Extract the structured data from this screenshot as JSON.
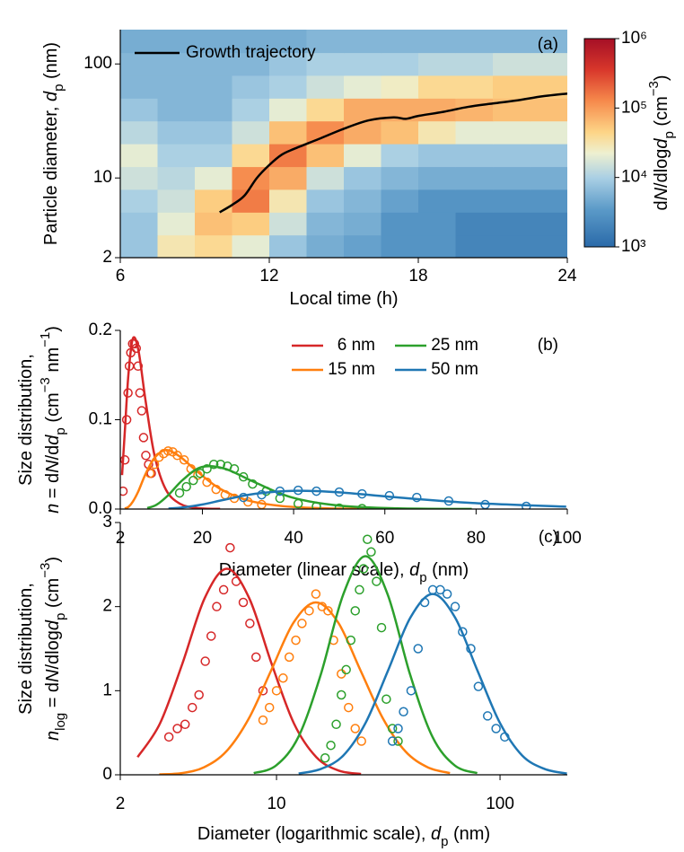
{
  "chart_data": [
    {
      "type": "heatmap",
      "label": "(a)",
      "xlim": [
        6,
        24
      ],
      "xticks": [
        6,
        12,
        18,
        24
      ],
      "ylim": [
        2,
        200
      ],
      "yticks": [
        2,
        10,
        100
      ],
      "ylog": true,
      "xlabel": [
        "Local time (h)"
      ],
      "ylabel": [
        [
          "Particle diameter, ",
          "d",
          "p",
          " (nm)"
        ]
      ],
      "xbins": [
        6,
        7.5,
        9,
        10.5,
        12,
        13.5,
        15,
        16.5,
        18,
        19.5,
        21,
        22.5,
        24
      ],
      "ybins": [
        2,
        3.17,
        5.02,
        7.96,
        12.6,
        20,
        31.7,
        50.2,
        79.6,
        126,
        200
      ],
      "z": [
        [
          8000,
          30000,
          40000,
          20000,
          8000,
          5000,
          4000,
          3000,
          3000,
          2000,
          2000,
          2000
        ],
        [
          8000,
          20000,
          60000,
          50000,
          15000,
          6000,
          5000,
          3000,
          3000,
          2000,
          2000,
          2000
        ],
        [
          10000,
          15000,
          50000,
          150000,
          30000,
          8000,
          6000,
          4000,
          3000,
          3000,
          3000,
          3000
        ],
        [
          15000,
          12000,
          20000,
          120000,
          80000,
          15000,
          8000,
          6000,
          5000,
          5000,
          5000,
          5000
        ],
        [
          20000,
          10000,
          10000,
          40000,
          150000,
          60000,
          20000,
          10000,
          8000,
          8000,
          8000,
          8000
        ],
        [
          12000,
          8000,
          8000,
          15000,
          60000,
          120000,
          80000,
          60000,
          30000,
          20000,
          20000,
          20000
        ],
        [
          8000,
          6000,
          6000,
          10000,
          20000,
          40000,
          80000,
          80000,
          80000,
          70000,
          60000,
          60000
        ],
        [
          6000,
          6000,
          6000,
          8000,
          10000,
          15000,
          20000,
          25000,
          40000,
          40000,
          50000,
          50000
        ],
        [
          6000,
          6000,
          6000,
          6000,
          8000,
          10000,
          10000,
          10000,
          12000,
          12000,
          15000,
          15000
        ],
        [
          5000,
          5000,
          5000,
          5000,
          5000,
          6000,
          6000,
          6000,
          6000,
          6000,
          6000,
          6000
        ]
      ],
      "clim": [
        1000,
        1000000
      ],
      "clog": true,
      "cticks": [
        {
          "value": 1000,
          "label": "10³"
        },
        {
          "value": 10000,
          "label": "10⁴"
        },
        {
          "value": 100000,
          "label": "10⁵"
        },
        {
          "value": 1000000,
          "label": "10⁶"
        }
      ],
      "clabel": [
        "d",
        "N",
        "/dlog",
        "d",
        "p",
        " (cm",
        "−3",
        ")"
      ],
      "legend": "upper left",
      "series": [
        {
          "name": "Growth trajectory",
          "color": "#000000",
          "x": [
            10,
            10.5,
            11,
            11.5,
            12,
            12.5,
            13,
            14,
            15,
            16,
            17,
            17.5,
            18,
            19,
            20,
            21,
            22,
            23,
            24
          ],
          "values": [
            5,
            5.8,
            7,
            10,
            13,
            16,
            18,
            22,
            27,
            32,
            34,
            33,
            35,
            38,
            42,
            45,
            48,
            52,
            55
          ]
        }
      ]
    },
    {
      "type": "line",
      "label": "(b)",
      "xlim": [
        2,
        100
      ],
      "xticks": [
        2,
        20,
        40,
        60,
        80,
        100
      ],
      "ylim": [
        0,
        0.2
      ],
      "yticks": [
        {
          "value": 0,
          "label": "0.0"
        },
        0.1,
        0.2
      ],
      "xlabel": [
        "Diameter (linear scale), ",
        "d",
        "p",
        " (nm)"
      ],
      "ylabel": [
        [
          "Size distribution,"
        ],
        [
          "n",
          " = d",
          "N",
          "/d",
          "d",
          "p",
          " (cm",
          "−3",
          " nm",
          "−1",
          ")"
        ]
      ],
      "legend": "upper center",
      "series": [
        {
          "name": "6 nm",
          "color": "#d62728",
          "x": [
            2.39,
            3.01,
            3.79,
            4.77,
            6,
            7.55,
            9.51,
            11.97,
            15.07,
            18.97,
            23.88
          ],
          "values": [
            0.038,
            0.088,
            0.151,
            0.191,
            0.177,
            0.121,
            0.06,
            0.022,
            0.006,
            0.001,
            0.0002
          ],
          "markers_x": [
            2.6,
            3,
            3.4,
            3.7,
            4,
            4.3,
            4.7,
            5.1,
            5.5,
            5.9,
            6.3,
            6.7,
            7.1,
            7.6,
            8.2,
            8.8
          ],
          "markers": [
            0.02,
            0.055,
            0.1,
            0.13,
            0.16,
            0.175,
            0.185,
            0.185,
            0.18,
            0.16,
            0.13,
            0.11,
            0.08,
            0.06,
            0.05,
            0.04
          ]
        },
        {
          "name": "15 nm",
          "color": "#ff7f0e",
          "x": [
            2.99,
            3.77,
            4.74,
            5.97,
            7.52,
            9.46,
            11.92,
            15,
            18.88,
            23.77,
            29.93,
            37.68,
            47.43,
            59.72
          ],
          "values": [
            0.0007,
            0.0023,
            0.0082,
            0.02,
            0.039,
            0.057,
            0.066,
            0.059,
            0.042,
            0.023,
            0.0097,
            0.0032,
            0.0008,
            0.0001
          ],
          "markers_x": [
            8.5,
            9.5,
            10.5,
            11.5,
            12.5,
            13.5,
            14.5,
            16,
            17.5,
            19,
            21,
            23,
            25,
            27,
            30,
            33
          ],
          "markers": [
            0.04,
            0.05,
            0.058,
            0.062,
            0.065,
            0.064,
            0.06,
            0.055,
            0.045,
            0.038,
            0.03,
            0.022,
            0.016,
            0.012,
            0.008,
            0.005
          ]
        },
        {
          "name": "25 nm",
          "color": "#2ca02c",
          "x": [
            7.91,
            9.95,
            12.53,
            15.77,
            19.86,
            25,
            31.47,
            39.62,
            49.88,
            62.8,
            79.06
          ],
          "values": [
            0.0011,
            0.0048,
            0.0156,
            0.033,
            0.047,
            0.045,
            0.03,
            0.013,
            0.0039,
            0.0008,
            0.0001
          ],
          "markers_x": [
            15,
            16.5,
            18,
            19.5,
            21,
            22.5,
            24,
            25.5,
            27,
            29,
            31,
            34,
            37,
            41,
            45,
            50,
            55
          ],
          "markers": [
            0.018,
            0.025,
            0.032,
            0.04,
            0.045,
            0.05,
            0.05,
            0.048,
            0.045,
            0.036,
            0.028,
            0.02,
            0.012,
            0.006,
            0.003,
            0.001,
            0.0005
          ]
        },
        {
          "name": "50 nm",
          "color": "#1f77b4",
          "x": [
            12.56,
            15.81,
            19.91,
            25.06,
            31.55,
            39.72,
            50,
            62.95,
            79.24,
            99.76
          ],
          "values": [
            0.0005,
            0.0019,
            0.005,
            0.0107,
            0.0171,
            0.0204,
            0.0187,
            0.0129,
            0.0068,
            0.0027
          ],
          "markers_x": [
            29,
            33,
            37,
            41,
            45,
            50,
            55,
            61,
            67,
            74,
            82,
            91
          ],
          "markers": [
            0.013,
            0.016,
            0.02,
            0.021,
            0.02,
            0.019,
            0.017,
            0.015,
            0.013,
            0.009,
            0.005,
            0.003
          ]
        }
      ]
    },
    {
      "type": "line",
      "label": "(c)",
      "xlim": [
        2,
        200
      ],
      "xticks": [
        2,
        10,
        100
      ],
      "xlog": true,
      "ylim": [
        0,
        3
      ],
      "yticks": [
        0,
        1,
        2,
        3
      ],
      "xlabel": [
        "Diameter (logarithmic scale), ",
        "d",
        "p",
        " (nm)"
      ],
      "ylabel": [
        [
          "Size distribution,"
        ],
        [
          "n",
          "log",
          " = d",
          "N",
          "/dlog",
          "d",
          "p",
          " (cm",
          "−3",
          ")"
        ]
      ],
      "series": [
        {
          "color": "#d62728",
          "x": [
            2.39,
            3.01,
            3.79,
            4.77,
            6,
            7.55,
            9.51,
            11.97,
            15.07,
            18.97,
            23.88
          ],
          "values": [
            0.21,
            0.61,
            1.32,
            2.1,
            2.45,
            2.1,
            1.32,
            0.61,
            0.21,
            0.05,
            0.01
          ],
          "markers_x": [
            3.3,
            3.6,
            3.9,
            4.2,
            4.5,
            4.8,
            5.1,
            5.4,
            5.8,
            6.2,
            6.6,
            7.1,
            7.6,
            8.1,
            8.7
          ],
          "markers": [
            0.45,
            0.55,
            0.6,
            0.8,
            0.95,
            1.35,
            1.65,
            2,
            2.2,
            2.7,
            2.3,
            2.05,
            1.8,
            1.4,
            1
          ]
        },
        {
          "color": "#ff7f0e",
          "x": [
            2.99,
            3.77,
            4.74,
            5.97,
            7.52,
            9.46,
            11.92,
            15,
            18.88,
            23.77,
            29.93,
            37.68,
            47.43,
            59.72
          ],
          "values": [
            0.005,
            0.02,
            0.09,
            0.28,
            0.67,
            1.24,
            1.81,
            2.05,
            1.81,
            1.24,
            0.67,
            0.28,
            0.09,
            0.02
          ],
          "markers_x": [
            8.7,
            9.3,
            10,
            10.7,
            11.4,
            12.2,
            13,
            14,
            15,
            16,
            17,
            18,
            19.5,
            21,
            22.5,
            24
          ],
          "markers": [
            0.65,
            0.8,
            1,
            1.15,
            1.4,
            1.6,
            1.8,
            1.95,
            2.15,
            2,
            1.95,
            1.6,
            1.2,
            0.8,
            0.55,
            0.4
          ]
        },
        {
          "color": "#2ca02c",
          "x": [
            7.91,
            9.95,
            12.53,
            15.77,
            19.86,
            25,
            31.47,
            39.62,
            49.88,
            62.8,
            79.06
          ],
          "values": [
            0.02,
            0.11,
            0.45,
            1.19,
            2.14,
            2.6,
            2.14,
            1.19,
            0.45,
            0.11,
            0.02
          ],
          "markers_x": [
            16.5,
            17.5,
            18.5,
            19.5,
            20.5,
            21.5,
            22.5,
            23.5,
            24.5,
            25.5,
            26.5,
            28,
            29.5,
            31,
            33,
            35
          ],
          "markers": [
            0.2,
            0.35,
            0.6,
            0.95,
            1.25,
            1.6,
            1.95,
            2.2,
            2.45,
            2.8,
            2.65,
            2.3,
            1.75,
            0.9,
            0.55,
            0.4
          ]
        },
        {
          "color": "#1f77b4",
          "x": [
            12.56,
            15.81,
            19.91,
            25.06,
            31.55,
            39.72,
            50,
            62.95,
            79.24,
            99.76,
            125.6,
            158.1,
            199.1
          ],
          "values": [
            0.015,
            0.07,
            0.23,
            0.62,
            1.24,
            1.87,
            2.15,
            1.87,
            1.24,
            0.62,
            0.23,
            0.07,
            0.015
          ],
          "markers_x": [
            33,
            35,
            37,
            40,
            43,
            46,
            50,
            54,
            58,
            63,
            68,
            74,
            80,
            88,
            96,
            105
          ],
          "markers": [
            0.4,
            0.55,
            0.75,
            1,
            1.5,
            2.05,
            2.2,
            2.2,
            2.15,
            2,
            1.7,
            1.5,
            1.05,
            0.7,
            0.55,
            0.45
          ]
        }
      ]
    }
  ]
}
